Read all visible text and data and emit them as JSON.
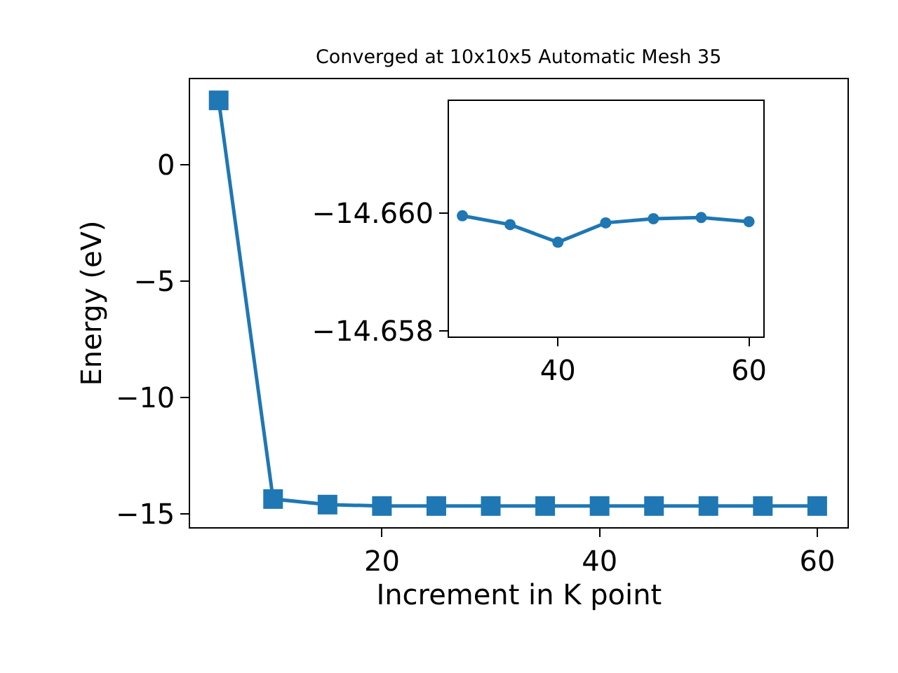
{
  "chart_data": [
    {
      "type": "line",
      "title": "Converged at 10x10x5 Automatic Mesh 35",
      "xlabel": "Increment in K point",
      "ylabel": "Energy (eV)",
      "x": [
        5,
        10,
        15,
        20,
        25,
        30,
        35,
        40,
        45,
        50,
        55,
        60
      ],
      "series": [
        {
          "color": "#1f77b4",
          "values": [
            2.77,
            -14.36,
            -14.6,
            -14.66,
            -14.66,
            -14.66,
            -14.66,
            -14.66,
            -14.66,
            -14.66,
            -14.66,
            -14.66
          ]
        }
      ],
      "xlim": [
        2.4,
        62.8
      ],
      "ylim": [
        -15.56,
        3.67
      ],
      "xticks": [
        20,
        40,
        60
      ],
      "yticks": [
        {
          "value": 0,
          "label": "0"
        },
        {
          "value": -5,
          "label": "−5"
        },
        {
          "value": -10,
          "label": "−10"
        },
        {
          "value": -15,
          "label": "−15"
        }
      ],
      "marker": "square",
      "line_style": "solid"
    },
    {
      "type": "line",
      "x": [
        30,
        35,
        40,
        45,
        50,
        55,
        60
      ],
      "series": [
        {
          "color": "#1f77b4",
          "values": [
            -14.65995,
            -14.6598,
            -14.6595,
            -14.65983,
            -14.6599,
            -14.65992,
            -14.65985
          ]
        }
      ],
      "xlim": [
        28.6,
        61.5
      ],
      "ylim": [
        -14.6579,
        -14.6619
      ],
      "xticks": [
        40,
        60
      ],
      "yticks": [
        {
          "value": -14.66,
          "label": "−14.660"
        },
        {
          "value": -14.658,
          "label": "−14.658"
        }
      ],
      "marker": "circle",
      "line_style": "solid"
    }
  ]
}
